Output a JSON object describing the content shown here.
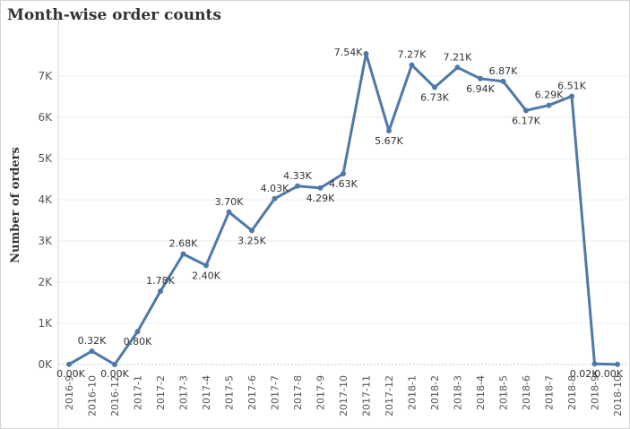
{
  "chart_data": {
    "type": "line",
    "title": "Month-wise order counts",
    "ylabel": "Number of orders",
    "xlabel": "",
    "ylim": [
      0,
      8000
    ],
    "yticks": [
      0,
      1000,
      2000,
      3000,
      4000,
      5000,
      6000,
      7000
    ],
    "ytick_labels": [
      "0K",
      "1K",
      "2K",
      "3K",
      "4K",
      "5K",
      "6K",
      "7K"
    ],
    "grid": "horizontal",
    "color": "#4e79a7",
    "categories": [
      "2016-9",
      "2016-10",
      "2016-12",
      "2017-1",
      "2017-2",
      "2017-3",
      "2017-4",
      "2017-5",
      "2017-6",
      "2017-7",
      "2017-8",
      "2017-9",
      "2017-10",
      "2017-11",
      "2017-12",
      "2018-1",
      "2018-2",
      "2018-3",
      "2018-4",
      "2018-5",
      "2018-6",
      "2018-7",
      "2018-8",
      "2018-9",
      "2018-10"
    ],
    "values": [
      4,
      324,
      1,
      800,
      1780,
      2682,
      2404,
      3700,
      3253,
      4026,
      4331,
      4285,
      4631,
      7544,
      5673,
      7269,
      6728,
      7211,
      6939,
      6873,
      6167,
      6292,
      6512,
      16,
      4
    ],
    "data_labels": [
      "0.00K",
      "0.32K",
      "0.00K",
      "0.80K",
      "1.78K",
      "2.68K",
      "2.40K",
      "3.70K",
      "3.25K",
      "4.03K",
      "4.33K",
      "4.29K",
      "4.63K",
      "7.54K",
      "5.67K",
      "7.27K",
      "6.73K",
      "7.21K",
      "6.94K",
      "6.87K",
      "6.17K",
      "6.29K",
      "6.51K",
      "0.02K",
      "0.00K"
    ],
    "label_pos": [
      "below",
      "above",
      "below",
      "below",
      "above",
      "above",
      "below",
      "above",
      "below",
      "above",
      "above",
      "below",
      "below",
      "above",
      "below",
      "above",
      "below",
      "above",
      "below",
      "above",
      "below",
      "above",
      "above",
      "below",
      "below"
    ]
  }
}
